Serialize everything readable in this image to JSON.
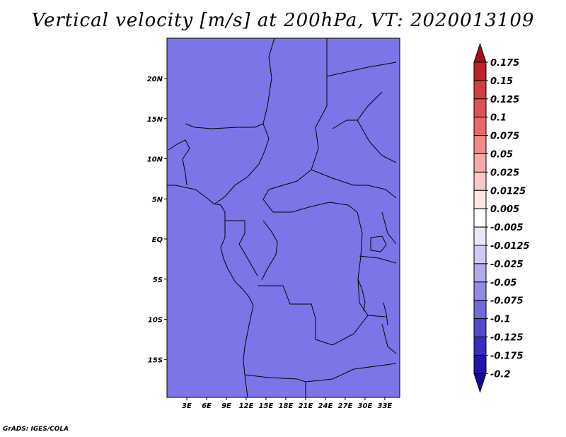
{
  "title": "Vertical velocity [m/s] at 200hPa, VT: 2020013109",
  "credit": "GrADS: IGES/COLA",
  "map": {
    "variable": "Vertical velocity",
    "units": "m/s",
    "level": "200hPa",
    "valid_time": "2020013109",
    "lon_range": [
      0,
      34
    ],
    "lat_range": [
      -20,
      25
    ],
    "lat_ticks": [
      {
        "value": 20,
        "label": "20N"
      },
      {
        "value": 15,
        "label": "15N"
      },
      {
        "value": 10,
        "label": "10N"
      },
      {
        "value": 5,
        "label": "5N"
      },
      {
        "value": 0,
        "label": "EQ"
      },
      {
        "value": -5,
        "label": "5S"
      },
      {
        "value": -10,
        "label": "10S"
      },
      {
        "value": -15,
        "label": "15S"
      }
    ],
    "lon_ticks": [
      {
        "value": 3,
        "label": "3E"
      },
      {
        "value": 6,
        "label": "6E"
      },
      {
        "value": 9,
        "label": "9E"
      },
      {
        "value": 12,
        "label": "12E"
      },
      {
        "value": 15,
        "label": "15E"
      },
      {
        "value": 18,
        "label": "18E"
      },
      {
        "value": 21,
        "label": "21E"
      },
      {
        "value": 24,
        "label": "24E"
      },
      {
        "value": 27,
        "label": "27E"
      },
      {
        "value": 30,
        "label": "30E"
      },
      {
        "value": 33,
        "label": "33E"
      }
    ]
  },
  "colorbar": {
    "labels": [
      "0.175",
      "0.15",
      "0.125",
      "0.1",
      "0.075",
      "0.05",
      "0.025",
      "0.0125",
      "0.005",
      "-0.005",
      "-0.0125",
      "-0.025",
      "-0.05",
      "-0.075",
      "-0.1",
      "-0.125",
      "-0.175",
      "-0.2"
    ],
    "colors": [
      "#a50f15",
      "#c0222a",
      "#d43d3d",
      "#e05050",
      "#e86a66",
      "#ef8a86",
      "#f4aaa6",
      "#f8c9c6",
      "#fce6e4",
      "#ffffff",
      "#e8e6fb",
      "#cfcbf5",
      "#b0aaee",
      "#928ae6",
      "#7469dc",
      "#5548cf",
      "#3a2cbf",
      "#2414ad",
      "#180a90"
    ]
  }
}
